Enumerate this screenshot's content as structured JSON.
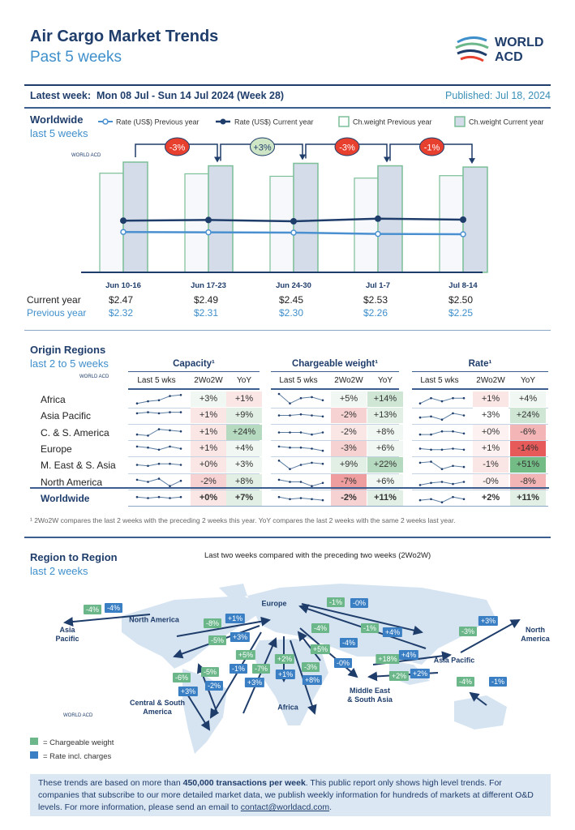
{
  "header": {
    "title": "Air Cargo Market Trends",
    "subtitle": "Past 5 weeks",
    "logo_text": "WORLD ACD",
    "latest_week_label": "Latest week:",
    "latest_week": "Mon 08 Jul - Sun 14 Jul 2024 (Week 28)",
    "published": "Published: Jul 18, 2024"
  },
  "worldwide": {
    "title": "Worldwide",
    "subtitle": "last 5 weeks",
    "legend": [
      "Rate (US$) Previous year",
      "Rate (US$) Current year",
      "Ch.weight Previous year",
      "Ch.weight Current year"
    ],
    "row_labels": {
      "current": "Current year",
      "previous": "Previous year"
    }
  },
  "chart_data": {
    "type": "bar",
    "categories": [
      "Jun 10-16",
      "Jun 17-23",
      "Jun 24-30",
      "Jul 1-7",
      "Jul 8-14"
    ],
    "series": [
      {
        "name": "Ch.weight Previous year",
        "type": "bar",
        "values": [
          161,
          160,
          156,
          153,
          157
        ]
      },
      {
        "name": "Ch.weight Current year",
        "type": "bar",
        "values": [
          179,
          173,
          177,
          173,
          171
        ]
      },
      {
        "name": "Rate (US$) Previous year",
        "type": "line",
        "values": [
          2.32,
          2.31,
          2.3,
          2.26,
          2.25
        ],
        "labels": [
          "$2.32",
          "$2.31",
          "$2.30",
          "$2.26",
          "$2.25"
        ]
      },
      {
        "name": "Rate (US$) Current year",
        "type": "line",
        "values": [
          2.47,
          2.49,
          2.45,
          2.53,
          2.5
        ],
        "labels": [
          "$2.47",
          "$2.49",
          "$2.45",
          "$2.53",
          "$2.50"
        ]
      }
    ],
    "week_changes": [
      {
        "label": "-3%",
        "color": "#e8402f"
      },
      {
        "label": "+3%",
        "color": "#cfe6c6"
      },
      {
        "label": "-3%",
        "color": "#e8402f"
      },
      {
        "label": "-1%",
        "color": "#e8402f"
      }
    ],
    "colors": {
      "bar_prev": "#f6f8fc",
      "bar_cur": "#d3dce8",
      "bar_border": "#7cbf98",
      "rate_prev": "#4a90d0",
      "rate_cur": "#1f3d6b"
    }
  },
  "origin": {
    "title": "Origin Regions",
    "subtitle": "last 2 to 5 weeks",
    "groups": [
      "Capacity¹",
      "Chargeable weight¹",
      "Rate¹"
    ],
    "subheaders": [
      "Last 5 wks",
      "2Wo2W",
      "YoY"
    ],
    "rows": [
      {
        "region": "Africa",
        "cap": [
          "+3%",
          "+1%"
        ],
        "cw": [
          "+5%",
          "+14%"
        ],
        "rate": [
          "+1%",
          "+4%"
        ],
        "tones": [
          "g0",
          "r1",
          "g0",
          "g2",
          "r1",
          "g0"
        ],
        "spark": [
          [
            1,
            3,
            4,
            8,
            9
          ],
          [
            10,
            1,
            6,
            7,
            4
          ],
          [
            1,
            6,
            3,
            6,
            6
          ]
        ]
      },
      {
        "region": "Asia Pacific",
        "cap": [
          "+1%",
          "+9%"
        ],
        "cw": [
          "-2%",
          "+13%"
        ],
        "rate": [
          "+3%",
          "+24%"
        ],
        "tones": [
          "r1",
          "g1",
          "r2",
          "g1",
          "w",
          "g2"
        ],
        "spark": [
          [
            7,
            8,
            7,
            8,
            8
          ],
          [
            5,
            5,
            6,
            5,
            4
          ],
          [
            3,
            4,
            1,
            7,
            5
          ]
        ]
      },
      {
        "region": "C. & S. America",
        "cap": [
          "+1%",
          "+24%"
        ],
        "cw": [
          "-2%",
          "+8%"
        ],
        "rate": [
          "+0%",
          "-6%"
        ],
        "tones": [
          "r1",
          "g3",
          "r1",
          "g0",
          "r0",
          "r3"
        ],
        "spark": [
          [
            3,
            2,
            8,
            7,
            6
          ],
          [
            5,
            5,
            5,
            3,
            5
          ],
          [
            3,
            3,
            6,
            6,
            4
          ]
        ]
      },
      {
        "region": "Europe",
        "cap": [
          "+1%",
          "+4%"
        ],
        "cw": [
          "-3%",
          "+6%"
        ],
        "rate": [
          "+1%",
          "-14%"
        ],
        "tones": [
          "r1",
          "g0",
          "r2",
          "g0",
          "r0",
          "r5"
        ],
        "spark": [
          [
            7,
            6,
            4,
            7,
            5
          ],
          [
            7,
            6,
            6,
            5,
            3
          ],
          [
            5,
            4,
            4,
            5,
            4
          ]
        ]
      },
      {
        "region": "M. East & S. Asia",
        "cap": [
          "+0%",
          "+3%"
        ],
        "cw": [
          "+9%",
          "+22%"
        ],
        "rate": [
          "-1%",
          "+51%"
        ],
        "tones": [
          "r1",
          "g0",
          "g1",
          "g3",
          "r1",
          "g5"
        ],
        "spark": [
          [
            5,
            4,
            6,
            6,
            5
          ],
          [
            9,
            1,
            5,
            7,
            6
          ],
          [
            7,
            8,
            1,
            4,
            3
          ]
        ]
      },
      {
        "region": "North America",
        "cap": [
          "-2%",
          "+8%"
        ],
        "cw": [
          "-7%",
          "+6%"
        ],
        "rate": [
          "-0%",
          "-8%"
        ],
        "tones": [
          "r2",
          "g1",
          "r4",
          "g0",
          "r0",
          "r3"
        ],
        "spark": [
          [
            7,
            5,
            8,
            1,
            6
          ],
          [
            7,
            5,
            5,
            1,
            4
          ],
          [
            2,
            4,
            5,
            3,
            5
          ]
        ]
      }
    ],
    "total": {
      "region": "Worldwide",
      "cap": [
        "+0%",
        "+7%"
      ],
      "cw": [
        "-2%",
        "+11%"
      ],
      "rate": [
        "+2%",
        "+11%"
      ],
      "tones": [
        "r1",
        "g1",
        "r2",
        "g1",
        "w",
        "g1"
      ],
      "spark": [
        [
          6,
          5,
          6,
          5,
          6
        ],
        [
          6,
          4,
          5,
          4,
          3
        ],
        [
          3,
          4,
          1,
          6,
          4
        ]
      ]
    },
    "footnote": "¹ 2Wo2W compares the last 2 weeks with the preceding 2 weeks this year. YoY compares the last 2 weeks with the same 2 weeks last year."
  },
  "region": {
    "title": "Region to Region",
    "subtitle": "last 2 weeks",
    "caption": "Last two weeks compared with the preceding two weeks (2Wo2W)",
    "labels": [
      "Europe",
      "North America",
      "Asia\nPacific",
      "North\nAmerica",
      "Asia Pacific",
      "Middle East\n& South Asia",
      "Central & South\nAmerica",
      "Africa"
    ],
    "badges": [
      {
        "cw": "-4%",
        "rate": "-4%"
      },
      {
        "cw": "-8%",
        "rate": "+1%"
      },
      {
        "cw": "-5%",
        "rate": "+3%"
      },
      {
        "cw": "+5%",
        "rate": "-1%"
      },
      {
        "cw": "-7%",
        "rate": "+3%"
      },
      {
        "cw": "+2%",
        "rate": "+1%"
      },
      {
        "cw": "-3%",
        "rate": "+8%"
      },
      {
        "cw": "-6%",
        "rate": "+3%"
      },
      {
        "cw": "-5%",
        "rate": "-2%"
      },
      {
        "cw": "-1%",
        "rate": "-0%"
      },
      {
        "cw": "-4%",
        "rate": "-4%"
      },
      {
        "cw": "+5%",
        "rate": "-0%"
      },
      {
        "cw": "-1%",
        "rate": "+4%"
      },
      {
        "cw": "+18%",
        "rate": "+4%"
      },
      {
        "cw": "+2%",
        "rate": "+2%"
      },
      {
        "cw": "-3%",
        "rate": "+3%"
      },
      {
        "cw": "-4%",
        "rate": "-1%"
      }
    ],
    "legend": {
      "cw": "= Chargeable weight",
      "rate": "= Rate incl. charges"
    },
    "colors": {
      "cw": "#6bb78a",
      "rate": "#3a7fc4",
      "land": "#d6e4f1",
      "arrow": "#1f3d6b"
    }
  },
  "footer": {
    "text1": "These trends are based on more than ",
    "bold": "450,000 transactions per week",
    "text2": ". This public report only shows high level trends. For companies that subscribe to our more detailed market data, we publish weekly information for hundreds of markets at different O&D levels. For more information, please send an email to ",
    "email": "contact@worldacd.com",
    "text3": "."
  }
}
